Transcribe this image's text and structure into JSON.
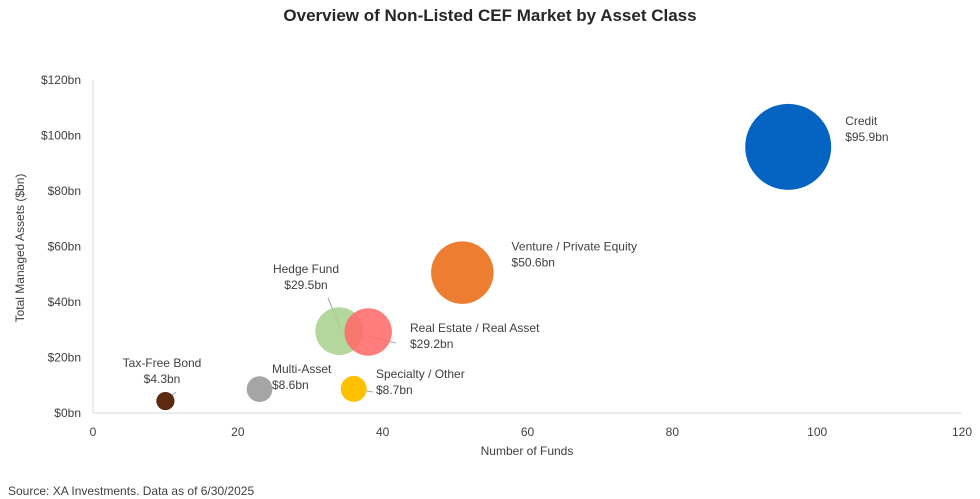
{
  "chart_data": {
    "type": "scatter",
    "title": "Overview of Non-Listed CEF Market by Asset Class",
    "xlabel": "Number of Funds",
    "ylabel": "Total Managed Assets ($bn)",
    "xlim": [
      0,
      120
    ],
    "ylim": [
      0,
      120
    ],
    "x_ticks": [
      "0",
      "20",
      "40",
      "60",
      "80",
      "100",
      "120"
    ],
    "y_ticks": [
      "$0bn",
      "$20bn",
      "$40bn",
      "$60bn",
      "$80bn",
      "$100bn",
      "$120bn"
    ],
    "grid": false,
    "legend": "none",
    "points": [
      {
        "name": "Credit",
        "label": "$95.9bn",
        "x": 96,
        "y": 95.9,
        "color": "#0563c1"
      },
      {
        "name": "Venture / Private Equity",
        "label": "$50.6bn",
        "x": 51,
        "y": 50.6,
        "color": "#ed7d31"
      },
      {
        "name": "Hedge Fund",
        "label": "$29.5bn",
        "x": 34,
        "y": 29.5,
        "color": "#a9d18e"
      },
      {
        "name": "Real Estate / Real Asset",
        "label": "$29.2bn",
        "x": 38,
        "y": 29.2,
        "color": "#ff6b6b"
      },
      {
        "name": "Tax-Free Bond",
        "label": "$4.3bn",
        "x": 10,
        "y": 4.3,
        "color": "#5c2a0e"
      },
      {
        "name": "Multi-Asset",
        "label": "$8.6bn",
        "x": 23,
        "y": 8.6,
        "color": "#a5a5a5"
      },
      {
        "name": "Specialty / Other",
        "label": "$8.7bn",
        "x": 36,
        "y": 8.7,
        "color": "#ffc000"
      }
    ]
  },
  "source": "Source: XA Investments. Data as of 6/30/2025"
}
